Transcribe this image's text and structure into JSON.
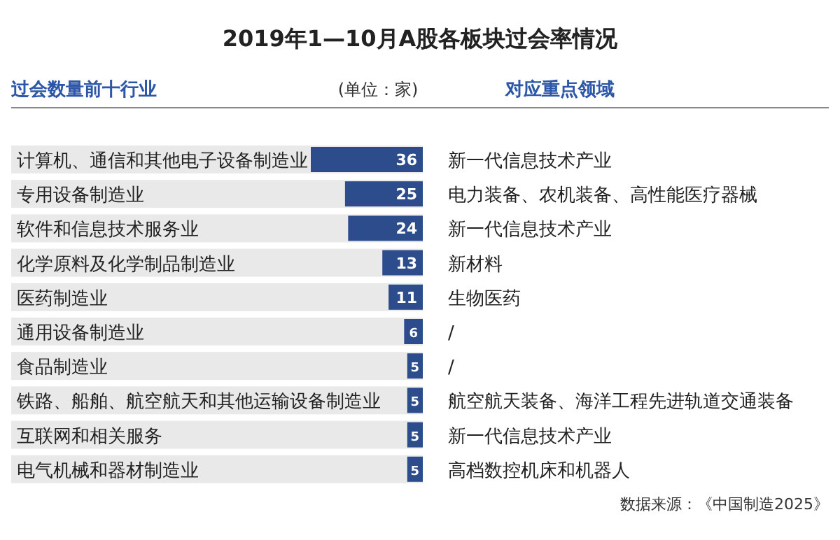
{
  "chart_data": {
    "type": "bar",
    "orientation": "horizontal",
    "title": "2019年1—10月A股各板块过会率情况",
    "subtitle": "过会数量前十行业",
    "categories": [
      "计算机、通信和其他电子设备制造业",
      "专用设备制造业",
      "软件和信息技术服务业",
      "化学原料及化学制品制造业",
      "医药制造业",
      "通用设备制造业",
      "食品制造业",
      "铁路、船舶、航空航天和其他运输设备制造业",
      "互联网和相关服务",
      "电气机械和器材制造业"
    ],
    "values": [
      36,
      25,
      24,
      13,
      11,
      6,
      5,
      5,
      5,
      5
    ],
    "color": "#2c4c8c",
    "data_labels": true,
    "annotations": [
      "(单位：家)",
      "对应重点领域",
      "新一代信息技术产业",
      "电力装备、农机装备、高性能医疗器械",
      "新一代信息技术产业",
      "新材料",
      "生物医药",
      "/",
      "/",
      "航空航天装备、海洋工程先进轨道交通装备",
      "新一代信息技术产业",
      "高档数控机床和机器人",
      "数据来源：《中国制造2025》"
    ]
  }
}
